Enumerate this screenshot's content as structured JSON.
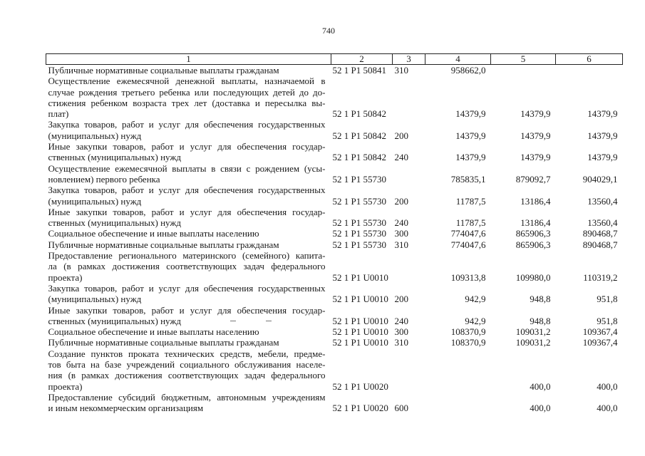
{
  "page_number": "740",
  "header": [
    "1",
    "2",
    "3",
    "4",
    "5",
    "6"
  ],
  "rows": [
    {
      "desc": [
        "Публичные нормативные социальные выплаты гражданам"
      ],
      "code": "52 1 P1 50841",
      "kvr": "310",
      "v4": "958662,0",
      "v5": "",
      "v6": ""
    },
    {
      "desc": [
        "Осуществление ежемесячной денежной выплаты, назначаемой в",
        "случае рождения третьего ребенка или последующих детей до до-",
        "стижения ребенком возраста трех лет (доставка и пересылка вы-",
        "плат)"
      ],
      "code": "52 1 P1 50842",
      "kvr": "",
      "v4": "14379,9",
      "v5": "14379,9",
      "v6": "14379,9"
    },
    {
      "desc": [
        "Закупка товаров, работ и услуг для обеспечения государственных",
        "(муниципальных) нужд"
      ],
      "code": "52 1 P1 50842",
      "kvr": "200",
      "v4": "14379,9",
      "v5": "14379,9",
      "v6": "14379,9"
    },
    {
      "desc": [
        "Иные закупки товаров, работ и услуг для обеспечения государ-",
        "ственных (муниципальных) нужд"
      ],
      "code": "52 1 P1 50842",
      "kvr": "240",
      "v4": "14379,9",
      "v5": "14379,9",
      "v6": "14379,9"
    },
    {
      "desc": [
        "Осуществление ежемесячной выплаты в связи с рождением (усы-",
        "новлением) первого ребенка"
      ],
      "code": "52 1 P1 55730",
      "kvr": "",
      "v4": "785835,1",
      "v5": "879092,7",
      "v6": "904029,1"
    },
    {
      "desc": [
        "Закупка товаров, работ и услуг для обеспечения государственных",
        "(муниципальных) нужд"
      ],
      "code": "52 1 P1 55730",
      "kvr": "200",
      "v4": "11787,5",
      "v5": "13186,4",
      "v6": "13560,4"
    },
    {
      "desc": [
        "Иные закупки товаров, работ и услуг для обеспечения государ-",
        "ственных (муниципальных) нужд"
      ],
      "code": "52 1 P1 55730",
      "kvr": "240",
      "v4": "11787,5",
      "v5": "13186,4",
      "v6": "13560,4"
    },
    {
      "desc": [
        "Социальное обеспечение и иные выплаты населению"
      ],
      "code": "52 1 P1 55730",
      "kvr": "300",
      "v4": "774047,6",
      "v5": "865906,3",
      "v6": "890468,7"
    },
    {
      "desc": [
        "Публичные нормативные социальные выплаты гражданам"
      ],
      "code": "52 1 P1 55730",
      "kvr": "310",
      "v4": "774047,6",
      "v5": "865906,3",
      "v6": "890468,7"
    },
    {
      "desc": [
        "Предоставление регионального материнского (семейного) капита-",
        "ла (в рамках достижения соответствующих задач федерального",
        "проекта)"
      ],
      "code": "52 1 P1 U0010",
      "kvr": "",
      "v4": "109313,8",
      "v5": "109980,0",
      "v6": "110319,2"
    },
    {
      "desc": [
        "Закупка товаров, работ и услуг для обеспечения государственных",
        "(муниципальных) нужд"
      ],
      "code": "52 1 P1 U0010",
      "kvr": "200",
      "v4": "942,9",
      "v5": "948,8",
      "v6": "951,8"
    },
    {
      "desc": [
        "Иные закупки товаров, работ и услуг для обеспечения государ-",
        "ственных (муниципальных) нужд"
      ],
      "code": "52 1 P1 U0010",
      "kvr": "240",
      "v4": "942,9",
      "v5": "948,8",
      "v6": "951,8"
    },
    {
      "desc": [
        "Социальное обеспечение и иные выплаты населению"
      ],
      "code": "52 1 P1 U0010",
      "kvr": "300",
      "v4": "108370,9",
      "v5": "109031,2",
      "v6": "109367,4"
    },
    {
      "desc": [
        "Публичные нормативные социальные выплаты гражданам"
      ],
      "code": "52 1 P1 U0010",
      "kvr": "310",
      "v4": "108370,9",
      "v5": "109031,2",
      "v6": "109367,4"
    },
    {
      "desc": [
        "Создание пунктов проката технических средств, мебели, предме-",
        "тов быта на базе учреждений социального обслуживания населе-",
        "ния (в рамках достижения соответствующих задач федерального",
        "проекта)"
      ],
      "code": "52 1 P1 U0020",
      "kvr": "",
      "v4": "",
      "v5": "400,0",
      "v6": "400,0"
    },
    {
      "desc": [
        "Предоставление субсидий бюджетным, автономным учреждениям",
        "и иным некоммерческим организациям"
      ],
      "code": "52 1 P1 U0020",
      "kvr": "600",
      "v4": "",
      "v5": "400,0",
      "v6": "400,0"
    }
  ]
}
